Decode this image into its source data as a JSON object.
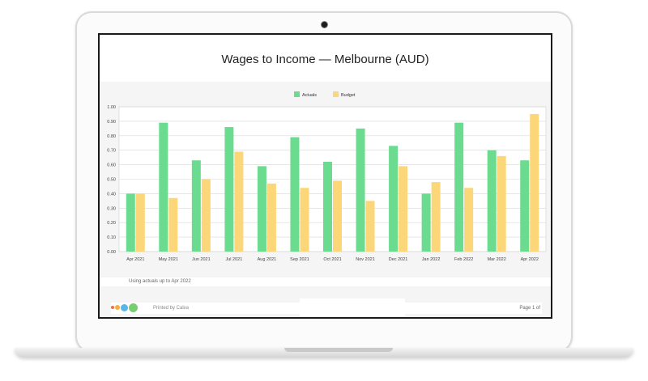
{
  "report": {
    "footnote": "Using actuals up to Apr 2022",
    "printed_by": "Printed by Calxa",
    "page_label": "Page 1 of"
  },
  "colors": {
    "actuals": "#6bdc8f",
    "budget": "#fcd77a",
    "logo_dots": [
      "#ef6b4d",
      "#f4b03e",
      "#5bb6e8",
      "#76cf6e"
    ]
  },
  "chart_data": {
    "type": "bar",
    "title": "Wages to Income — Melbourne (AUD)",
    "categories": [
      "Apr 2021",
      "May 2021",
      "Jun 2021",
      "Jul 2021",
      "Aug 2021",
      "Sep 2021",
      "Oct 2021",
      "Nov 2021",
      "Dec 2021",
      "Jan 2022",
      "Feb 2022",
      "Mar 2022",
      "Apr 2022"
    ],
    "series": [
      {
        "name": "Actuals",
        "color": "#6bdc8f",
        "values": [
          0.4,
          0.89,
          0.63,
          0.86,
          0.59,
          0.79,
          0.62,
          0.85,
          0.73,
          0.4,
          0.89,
          0.7,
          0.63
        ]
      },
      {
        "name": "Budget",
        "color": "#fcd77a",
        "values": [
          0.4,
          0.37,
          0.5,
          0.69,
          0.47,
          0.44,
          0.49,
          0.35,
          0.59,
          0.48,
          0.44,
          0.66,
          0.95
        ]
      }
    ],
    "ylim": [
      0,
      1.0
    ],
    "yticks": [
      "0.00",
      "0.10",
      "0.20",
      "0.30",
      "0.40",
      "0.50",
      "0.60",
      "0.70",
      "0.80",
      "0.90",
      "1.00"
    ],
    "grid": true,
    "legend_position": "top-center"
  }
}
